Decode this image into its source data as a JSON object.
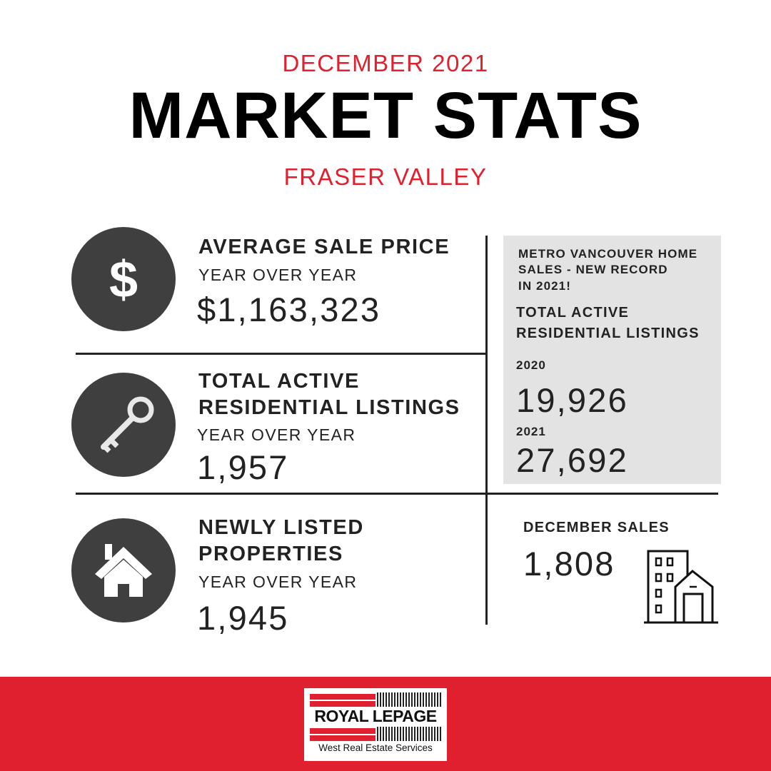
{
  "header": {
    "month": "DECEMBER 2021",
    "title": "MARKET STATS",
    "region": "FRASER VALLEY"
  },
  "stats": [
    {
      "heading": "AVERAGE SALE PRICE",
      "sub": "YEAR OVER YEAR",
      "value": "$1,163,323",
      "icon": "dollar-icon"
    },
    {
      "heading_line1": "TOTAL ACTIVE",
      "heading_line2": "RESIDENTIAL LISTINGS",
      "sub": "YEAR OVER YEAR",
      "value": "1,957",
      "icon": "key-icon"
    },
    {
      "heading_line1": "NEWLY LISTED",
      "heading_line2": "PROPERTIES",
      "sub": "YEAR OVER YEAR",
      "value": "1,945",
      "icon": "house-icon"
    }
  ],
  "panel": {
    "title_line1": "METRO VANCOUVER HOME",
    "title_line2": "SALES - NEW RECORD",
    "title_line3": "IN 2021!",
    "heading_line1": "TOTAL ACTIVE",
    "heading_line2": "RESIDENTIAL LISTINGS",
    "rows": [
      {
        "year": "2020",
        "value": "19,926"
      },
      {
        "year": "2021",
        "value": "27,692"
      }
    ]
  },
  "december_sales": {
    "label": "DECEMBER SALES",
    "value": "1,808",
    "icon": "buildings-icon"
  },
  "footer": {
    "brand": "ROYAL LEPAGE",
    "tagline": "West Real Estate Services"
  },
  "colors": {
    "accent": "#e0202f",
    "icon_bg": "#3f3f3f",
    "panel_bg": "#e3e3e3"
  }
}
